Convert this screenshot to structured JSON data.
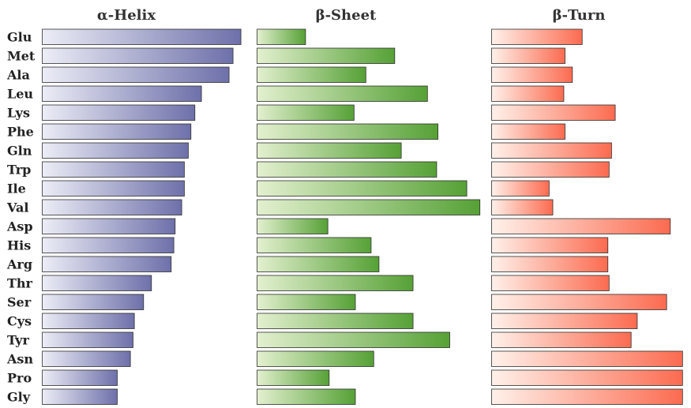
{
  "chart_data": {
    "type": "bar",
    "orientation": "horizontal",
    "categories": [
      "Glu",
      "Met",
      "Ala",
      "Leu",
      "Lys",
      "Phe",
      "Gln",
      "Trp",
      "Ile",
      "Val",
      "Asp",
      "His",
      "Arg",
      "Thr",
      "Ser",
      "Cys",
      "Tyr",
      "Asn",
      "Pro",
      "Gly"
    ],
    "series": [
      {
        "name": "α-Helix",
        "color": "#6e70aa",
        "values": [
          1.51,
          1.45,
          1.42,
          1.21,
          1.16,
          1.13,
          1.11,
          1.08,
          1.08,
          1.06,
          1.01,
          1.0,
          0.98,
          0.83,
          0.77,
          0.7,
          0.69,
          0.67,
          0.57,
          0.57
        ]
      },
      {
        "name": "β-Sheet",
        "color": "#56a136",
        "values": [
          0.37,
          1.05,
          0.83,
          1.3,
          0.74,
          1.38,
          1.1,
          1.37,
          1.6,
          1.7,
          0.54,
          0.87,
          0.93,
          1.19,
          0.75,
          1.19,
          1.47,
          0.89,
          0.55,
          0.75
        ]
      },
      {
        "name": "β-Turn",
        "color": "#fb6b50",
        "values": [
          0.74,
          0.6,
          0.66,
          0.59,
          1.01,
          0.6,
          0.98,
          0.96,
          0.47,
          0.5,
          1.46,
          0.95,
          0.95,
          0.96,
          1.43,
          1.19,
          1.14,
          1.56,
          1.56,
          1.56
        ]
      }
    ],
    "title": "",
    "xlabel": "",
    "ylabel": "",
    "grid": false,
    "legend": "none"
  }
}
